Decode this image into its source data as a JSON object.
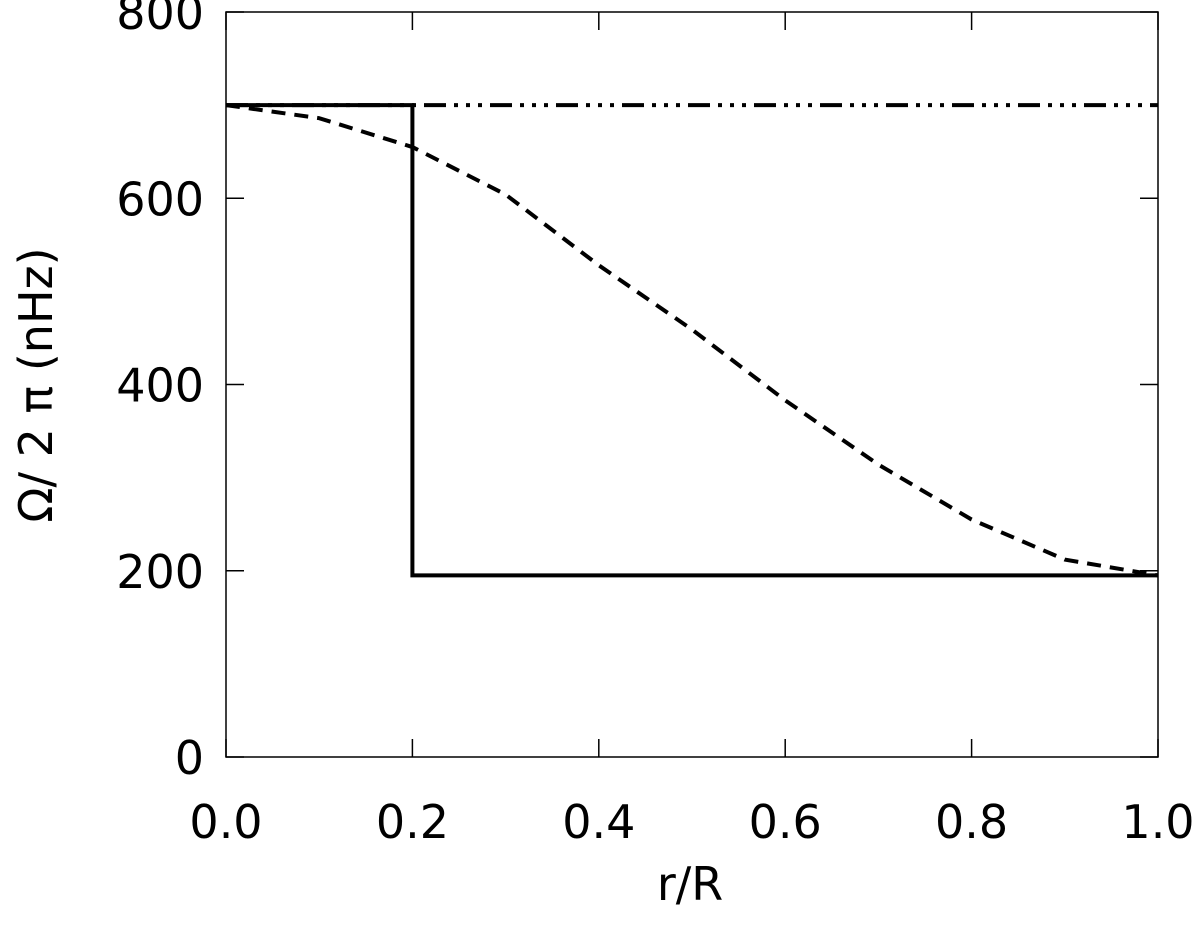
{
  "chart_data": {
    "type": "line",
    "x_label": "r/R",
    "y_label": "Ω/ 2 π (nHz)",
    "xlim": [
      0,
      1
    ],
    "ylim": [
      0,
      800
    ],
    "xticks": [
      {
        "value": 0,
        "label": "0.0"
      },
      {
        "value": 0.2,
        "label": "0.2"
      },
      {
        "value": 0.4,
        "label": "0.4"
      },
      {
        "value": 0.6,
        "label": "0.6"
      },
      {
        "value": 0.8,
        "label": "0.8"
      },
      {
        "value": 1,
        "label": "1.0"
      }
    ],
    "yticks": [
      0,
      200,
      400,
      600,
      800
    ],
    "series": [
      {
        "color": "#000000",
        "style": "solid",
        "x": [
          0,
          0.2,
          0.2,
          1
        ],
        "values": [
          700,
          700,
          195,
          195
        ]
      },
      {
        "color": "#000000",
        "style": "dashed",
        "x": [
          0,
          0.1,
          0.2,
          0.3,
          0.4,
          0.5,
          0.6,
          0.7,
          0.8,
          0.9,
          1
        ],
        "values": [
          700,
          686,
          655,
          604,
          528,
          459,
          383,
          314,
          255,
          212,
          195
        ]
      },
      {
        "color": "#000000",
        "style": "dash-dot-dot-dot",
        "x": [
          0,
          1
        ],
        "values": [
          700,
          700
        ]
      }
    ]
  }
}
